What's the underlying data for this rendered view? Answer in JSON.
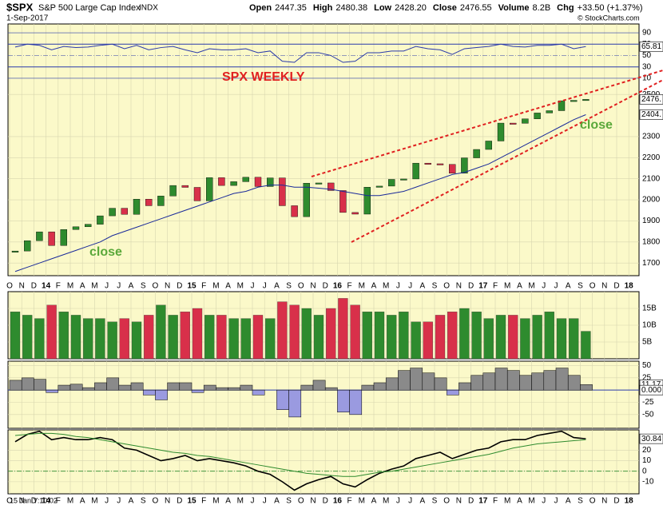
{
  "header": {
    "symbol": "$SPX",
    "name": "S&P 500 Large Cap Index",
    "exchange": "INDX",
    "date": "1-Sep-2017",
    "quote": [
      {
        "label": "Open",
        "value": "2447.35"
      },
      {
        "label": "High",
        "value": "2480.38"
      },
      {
        "label": "Low",
        "value": "2428.20"
      },
      {
        "label": "Close",
        "value": "2476.55"
      },
      {
        "label": "Volume",
        "value": "8.2B"
      },
      {
        "label": "Chg",
        "value": "+33.50 (+1.37%)"
      }
    ],
    "copyright": "© StockCharts.com"
  },
  "chart_data": [
    {
      "type": "price",
      "title": "SPX WEEKLY",
      "annotations": [
        "close",
        "close"
      ],
      "categories": [
        "O",
        "N",
        "D",
        "14",
        "F",
        "M",
        "A",
        "M",
        "J",
        "J",
        "A",
        "S",
        "O",
        "N",
        "D",
        "15",
        "F",
        "M",
        "A",
        "M",
        "J",
        "J",
        "A",
        "S",
        "O",
        "N",
        "D",
        "16",
        "F",
        "M",
        "A",
        "M",
        "J",
        "J",
        "A",
        "S",
        "O",
        "N",
        "D",
        "17",
        "F",
        "M",
        "A",
        "M",
        "J",
        "J",
        "A",
        "S",
        "O",
        "N",
        "D",
        "18"
      ],
      "values": [
        1757,
        1806,
        1848,
        1783,
        1859,
        1872,
        1884,
        1924,
        1960,
        1931,
        2003,
        1972,
        2018,
        2068,
        2059,
        1995,
        2105,
        2068,
        2086,
        2107,
        2063,
        2104,
        1972,
        1920,
        2079,
        2080,
        2044,
        1940,
        1932,
        2060,
        2065,
        2097,
        2099,
        2174,
        2171,
        2168,
        2126,
        2199,
        2239,
        2279,
        2364,
        2363,
        2384,
        2412,
        2423,
        2470,
        2472,
        2476.55,
        null,
        null,
        null,
        null
      ],
      "ma": [
        1660,
        1680,
        1700,
        1720,
        1740,
        1760,
        1780,
        1800,
        1830,
        1850,
        1870,
        1890,
        1910,
        1930,
        1950,
        1970,
        1990,
        2010,
        2030,
        2040,
        2060,
        2070,
        2070,
        2060,
        2060,
        2055,
        2050,
        2040,
        2030,
        2020,
        2020,
        2030,
        2040,
        2060,
        2080,
        2100,
        2120,
        2130,
        2150,
        2170,
        2200,
        2230,
        2260,
        2290,
        2320,
        2350,
        2380,
        2404,
        null,
        null,
        null,
        null
      ],
      "up_color": "#2e8b2e",
      "down_color": "#d8304a",
      "ma_color": "#1a2a9a",
      "ylim": [
        1640,
        2550
      ],
      "yticks": [
        1700,
        1800,
        1900,
        2000,
        2100,
        2200,
        2300,
        2500
      ],
      "value_markers": [
        {
          "value": 2476.55,
          "label": "2476."
        },
        {
          "value": 2404,
          "label": "2404."
        }
      ],
      "rsi": {
        "values": [
          65,
          70,
          68,
          60,
          66,
          64,
          65,
          68,
          70,
          62,
          68,
          60,
          64,
          66,
          60,
          55,
          62,
          60,
          60,
          62,
          55,
          58,
          40,
          38,
          55,
          55,
          50,
          38,
          40,
          55,
          55,
          58,
          58,
          66,
          62,
          60,
          52,
          62,
          64,
          66,
          70,
          66,
          65,
          68,
          68,
          70,
          62,
          65.81,
          null,
          null,
          null,
          null
        ],
        "color": "#2a3aaa",
        "ylim": [
          0,
          100
        ],
        "yticks": [
          90,
          70,
          50,
          30,
          10
        ],
        "value_markers": [
          {
            "value": 65.81,
            "label": "65.81"
          }
        ]
      }
    },
    {
      "type": "volume",
      "values": [
        14,
        13,
        12,
        16,
        14,
        13,
        12,
        12,
        11,
        12,
        11,
        13,
        16,
        13,
        14,
        15,
        13,
        13,
        12,
        12,
        13,
        12,
        17,
        16,
        15,
        13,
        15,
        18,
        16,
        14,
        14,
        13,
        14,
        11,
        11,
        13,
        14,
        15,
        14,
        12,
        13,
        13,
        12,
        13,
        14,
        12,
        12,
        8.2,
        null,
        null,
        null,
        null
      ],
      "ylim": [
        0,
        20
      ],
      "yticks": [
        {
          "value": 15,
          "label": "15B"
        },
        {
          "value": 10,
          "label": "10B"
        },
        {
          "value": 5,
          "label": "5B"
        }
      ]
    },
    {
      "type": "histogram",
      "values": [
        20,
        25,
        22,
        -5,
        10,
        12,
        5,
        15,
        25,
        10,
        15,
        -10,
        -20,
        15,
        15,
        -5,
        10,
        5,
        5,
        10,
        -10,
        0,
        -40,
        -55,
        10,
        20,
        5,
        -45,
        -50,
        10,
        15,
        25,
        40,
        45,
        35,
        25,
        -10,
        15,
        30,
        35,
        45,
        40,
        30,
        35,
        40,
        45,
        30,
        11.17,
        null,
        null,
        null,
        null
      ],
      "color": "#8a8a8a",
      "neg_color": "#9a9ae0",
      "ylim": [
        -78,
        59
      ],
      "yticks": [
        50,
        25,
        -25,
        -50
      ],
      "value_markers": [
        {
          "value": 11.17,
          "label": "11.17"
        },
        {
          "value": 0,
          "label": "0.000"
        }
      ]
    },
    {
      "type": "line",
      "cursor_label": "15 Jan Y:10.02",
      "categories": [
        "O",
        "N",
        "D",
        "14",
        "F",
        "M",
        "A",
        "M",
        "J",
        "J",
        "A",
        "S",
        "O",
        "N",
        "D",
        "15",
        "F",
        "M",
        "A",
        "M",
        "J",
        "J",
        "A",
        "S",
        "O",
        "N",
        "D",
        "16",
        "F",
        "M",
        "A",
        "M",
        "J",
        "J",
        "A",
        "S",
        "O",
        "N",
        "D",
        "17",
        "F",
        "M",
        "A",
        "M",
        "J",
        "J",
        "A",
        "S",
        "O",
        "N",
        "D",
        "18"
      ],
      "series": [
        {
          "color": "#000000",
          "values": [
            28,
            35,
            38,
            30,
            32,
            30,
            30,
            32,
            30,
            22,
            20,
            15,
            10,
            12,
            15,
            10,
            12,
            10,
            8,
            5,
            0,
            -3,
            -10,
            -18,
            -12,
            -8,
            -5,
            -12,
            -15,
            -8,
            -2,
            2,
            5,
            12,
            15,
            18,
            12,
            16,
            20,
            22,
            28,
            30,
            30,
            34,
            36,
            38,
            32,
            30.84,
            null,
            null,
            null,
            null
          ]
        },
        {
          "color": "#2e8b2e",
          "values": [
            34,
            35,
            36,
            36,
            35,
            33,
            32,
            30,
            28,
            26,
            24,
            22,
            20,
            18,
            17,
            15,
            14,
            12,
            10,
            8,
            6,
            4,
            2,
            0,
            -2,
            -3,
            -4,
            -5,
            -5,
            -3,
            -1,
            0,
            2,
            4,
            6,
            8,
            10,
            12,
            14,
            16,
            19,
            22,
            24,
            26,
            27,
            28,
            29,
            30,
            null,
            null,
            null,
            null
          ]
        }
      ],
      "ylim": [
        -21.5,
        39.3
      ],
      "yticks": [
        20,
        10,
        0,
        -10
      ],
      "value_markers": [
        {
          "value": 30.84,
          "label": "30.84"
        }
      ]
    }
  ]
}
